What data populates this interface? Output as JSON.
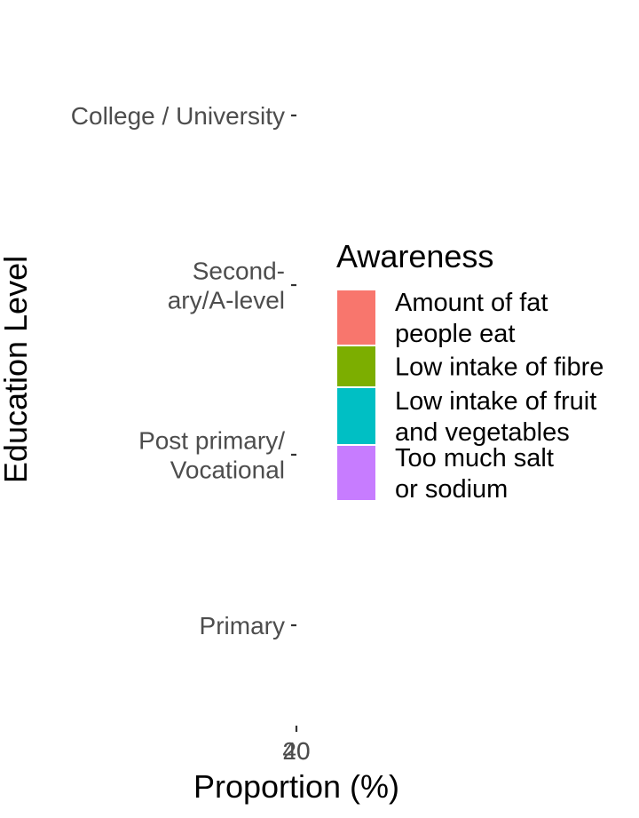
{
  "chart_data": {
    "type": "bar",
    "orientation": "horizontal",
    "stacked": true,
    "xlabel": "Proportion (%)",
    "ylabel": "Education Level",
    "categories": [
      [
        "College / University"
      ],
      [
        "Second-",
        "ary/A-level"
      ],
      [
        "Post primary/",
        "Vocational"
      ],
      [
        "Primary"
      ]
    ],
    "x_ticks": [
      "20",
      "40"
    ],
    "series": [],
    "grid": false,
    "legend": {
      "title": "Awareness",
      "placement": "right",
      "items": [
        {
          "lines": [
            "Amount of fat",
            "people eat"
          ],
          "color": "#F8766D"
        },
        {
          "lines": [
            "Low intake of fibre"
          ],
          "color": "#7CAE00"
        },
        {
          "lines": [
            "Low intake of fruit",
            "and vegetables"
          ],
          "color": "#00BFC4"
        },
        {
          "lines": [
            "Too much salt",
            "or sodium"
          ],
          "color": "#C77CFF"
        }
      ]
    }
  }
}
